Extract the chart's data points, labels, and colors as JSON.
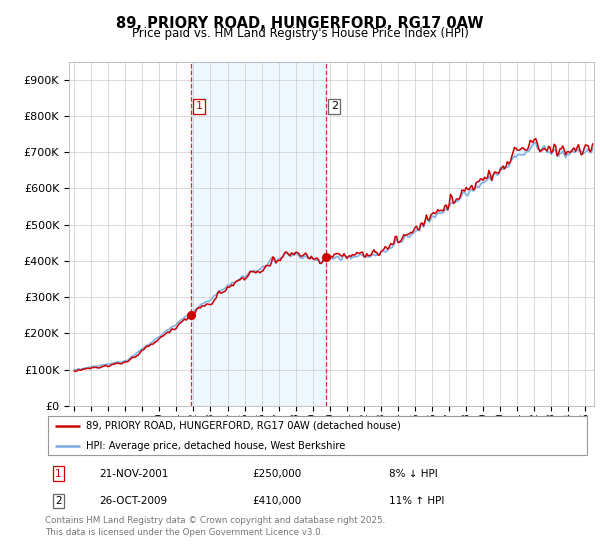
{
  "title": "89, PRIORY ROAD, HUNGERFORD, RG17 0AW",
  "subtitle": "Price paid vs. HM Land Registry's House Price Index (HPI)",
  "legend_line1": "89, PRIORY ROAD, HUNGERFORD, RG17 0AW (detached house)",
  "legend_line2": "HPI: Average price, detached house, West Berkshire",
  "transaction1_date": "21-NOV-2001",
  "transaction1_price": "£250,000",
  "transaction1_hpi": "8% ↓ HPI",
  "transaction2_date": "26-OCT-2009",
  "transaction2_price": "£410,000",
  "transaction2_hpi": "11% ↑ HPI",
  "footer": "Contains HM Land Registry data © Crown copyright and database right 2025.\nThis data is licensed under the Open Government Licence v3.0.",
  "red_color": "#cc0000",
  "blue_color": "#7aaadd",
  "fill_color": "#ddeeff",
  "ylim": [
    0,
    950000
  ],
  "yticks": [
    0,
    100000,
    200000,
    300000,
    400000,
    500000,
    600000,
    700000,
    800000,
    900000
  ],
  "t1_year": 2001.88,
  "t2_year": 2009.8,
  "t1_price": 250000,
  "t2_price": 410000
}
